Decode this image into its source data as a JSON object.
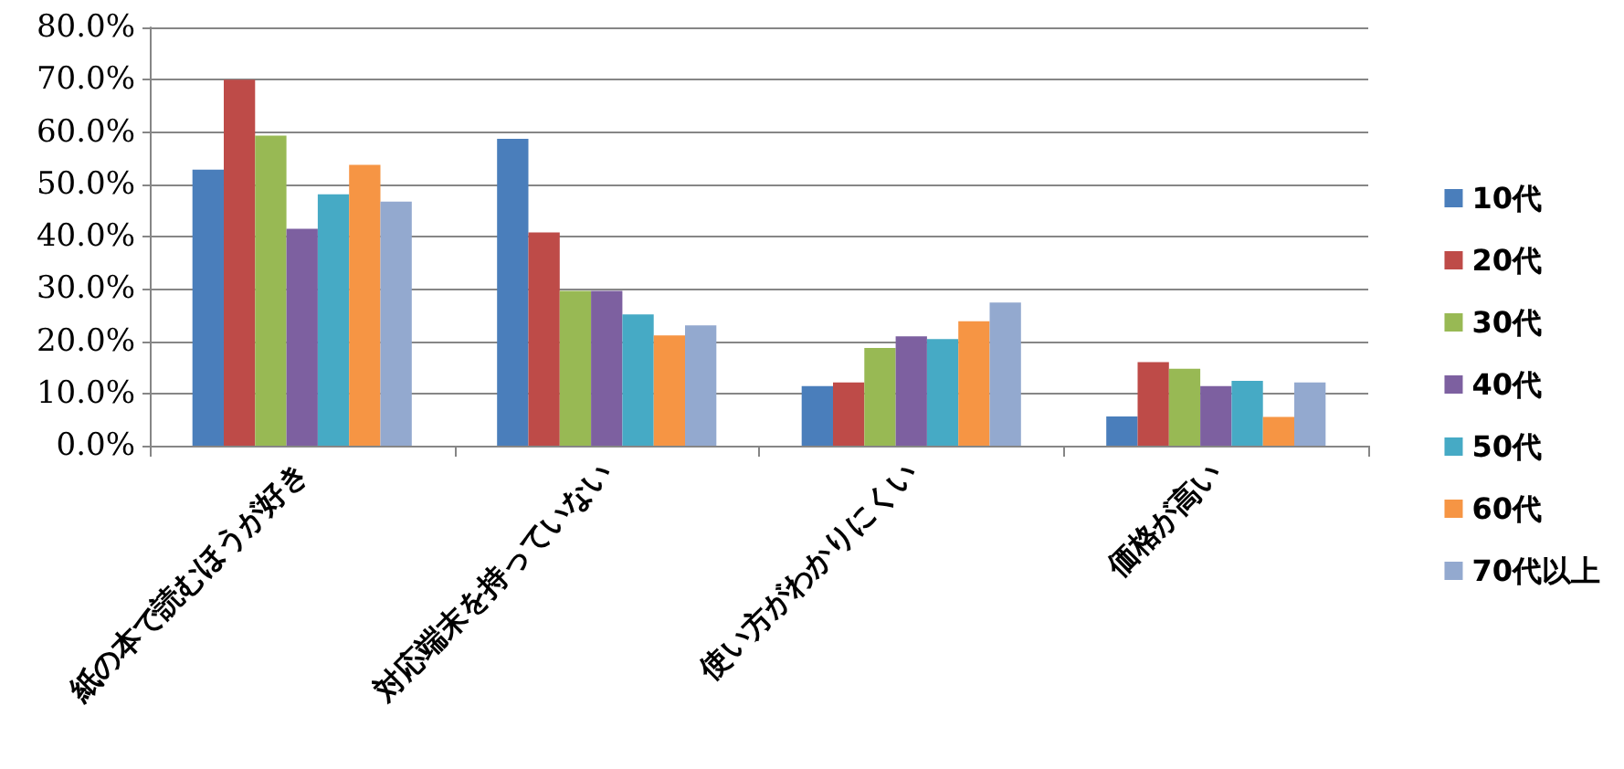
{
  "chart_data": {
    "type": "bar",
    "categories": [
      "紙の本で読むほうが好き",
      "対応端末を持っていない",
      "使い方がわかりにくい",
      "価格が高い"
    ],
    "series": [
      {
        "name": "10代",
        "color": "#4a7ebb",
        "values": [
          52.8,
          58.7,
          11.4,
          5.6
        ]
      },
      {
        "name": "20代",
        "color": "#be4b48",
        "values": [
          70.0,
          40.8,
          12.1,
          16.0
        ]
      },
      {
        "name": "30代",
        "color": "#98b954",
        "values": [
          59.3,
          29.6,
          18.7,
          14.7
        ]
      },
      {
        "name": "40代",
        "color": "#7d60a0",
        "values": [
          41.5,
          29.6,
          20.9,
          11.4
        ]
      },
      {
        "name": "50代",
        "color": "#46aac5",
        "values": [
          48.1,
          25.1,
          20.4,
          12.4
        ]
      },
      {
        "name": "60代",
        "color": "#f69544",
        "values": [
          53.7,
          21.1,
          23.8,
          5.5
        ]
      },
      {
        "name": "70代以上",
        "color": "#93a9cf",
        "values": [
          46.7,
          23.0,
          27.4,
          12.1
        ]
      }
    ],
    "ylim": [
      0,
      80
    ],
    "yticks": [
      {
        "value": 0,
        "label": "0.0%"
      },
      {
        "value": 10,
        "label": "10.0%"
      },
      {
        "value": 20,
        "label": "20.0%"
      },
      {
        "value": 30,
        "label": "30.0%"
      },
      {
        "value": 40,
        "label": "40.0%"
      },
      {
        "value": 50,
        "label": "50.0%"
      },
      {
        "value": 60,
        "label": "60.0%"
      },
      {
        "value": 70,
        "label": "70.0%"
      },
      {
        "value": 80,
        "label": "80.0%"
      }
    ],
    "grid": "y",
    "legend": "right"
  }
}
